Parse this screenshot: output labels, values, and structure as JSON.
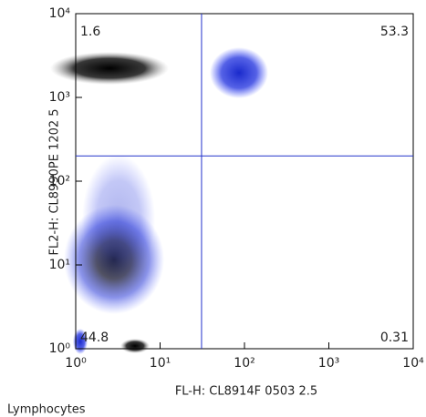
{
  "chart_data": {
    "type": "scatter",
    "x_label": "FL-H: CL8914F   0503  2.5",
    "y_label": "FL2-H: CL8990PE   1202  5",
    "caption": "Lymphocytes",
    "log_x": true,
    "log_y": true,
    "xlim": [
      1,
      10000
    ],
    "ylim": [
      1,
      10000
    ],
    "xticks": [
      {
        "value": 1,
        "label": "10⁰"
      },
      {
        "value": 10,
        "label": "10¹"
      },
      {
        "value": 100,
        "label": "10²"
      },
      {
        "value": 1000,
        "label": "10³"
      },
      {
        "value": 10000,
        "label": "10⁴"
      }
    ],
    "yticks": [
      {
        "value": 1,
        "label": "10⁰"
      },
      {
        "value": 10,
        "label": "10¹"
      },
      {
        "value": 100,
        "label": "10²"
      },
      {
        "value": 1000,
        "label": "10³"
      },
      {
        "value": 10000,
        "label": "10⁴"
      }
    ],
    "x_gate": 31,
    "y_gate": 200,
    "gate_color": "#2233cc",
    "quadrant_values": [
      1.6,
      53.3,
      44.8,
      0.31
    ]
  }
}
